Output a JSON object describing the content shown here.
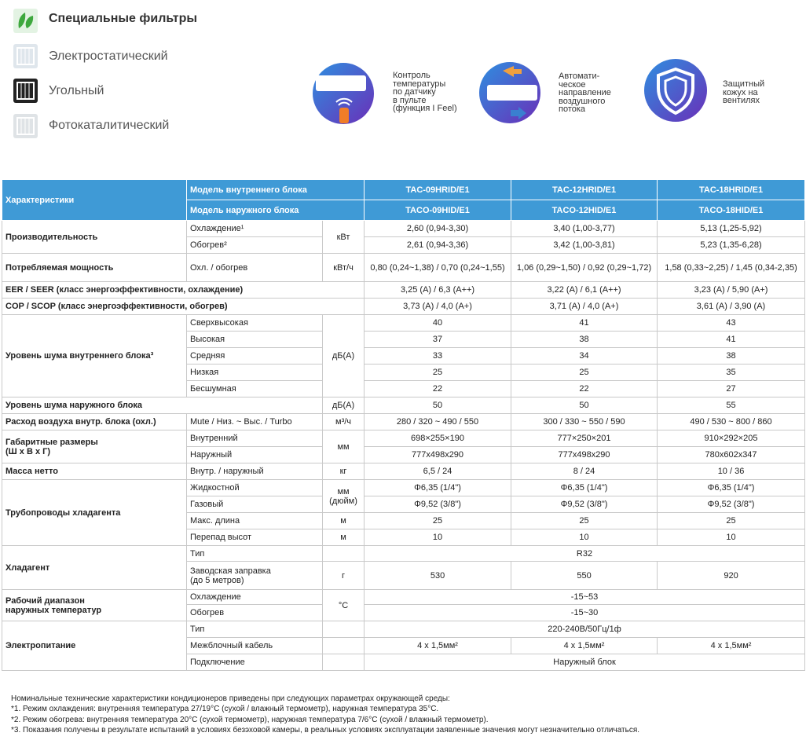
{
  "filters": {
    "title": "Специальные фильтры",
    "items": [
      "Электростатический",
      "Угольный",
      "Фотокаталитический"
    ]
  },
  "features": [
    {
      "lines": [
        "Контроль",
        "температуры",
        "по датчику",
        "в пульте",
        "(функция I Feel)"
      ]
    },
    {
      "lines": [
        "Автомати-",
        "ческое",
        "направление",
        "воздушного",
        "потока"
      ]
    },
    {
      "lines": [
        "Защитный",
        "кожух на",
        "вентилях"
      ]
    }
  ],
  "table": {
    "header": [
      [
        "Характеристики",
        "Модель внутреннего блока",
        "TAC-09HRID/E1",
        "TAC-12HRID/E1",
        "TAC-18HRID/E1"
      ],
      [
        "Модель наружного блока",
        "TACO-09HID/E1",
        "TACO-12HID/E1",
        "TACO-18HID/E1"
      ]
    ],
    "rows": [
      [
        "Производительность",
        "Охлаждение¹",
        "кВт",
        "2,60 (0,94-3,30)",
        "3,40 (1,00-3,77)",
        "5,13 (1,25-5,92)"
      ],
      [
        "Обогрев²",
        "2,61 (0,94-3,36)",
        "3,42 (1,00-3,81)",
        "5,23 (1,35-6,28)"
      ],
      [
        "Потребляемая мощность",
        "Охл. / обогрев",
        "кВт/ч",
        "0,80 (0,24~1,38) / 0,70 (0,24~1,55)",
        "1,06 (0,29~1,50) / 0,92 (0,29~1,72)",
        "1,58 (0,33~2,25) / 1,45 (0,34-2,35)"
      ],
      [
        "EER / SEER (класс энергоэффективности, охлаждение)",
        "3,25 (A) / 6,3 (A++)",
        "3,22 (A) / 6,1 (A++)",
        "3,23 (A) / 5,90 (A+)"
      ],
      [
        "COP / SCOP (класс энергоэффективности, обогрев)",
        "3,73 (A) / 4,0 (A+)",
        "3,71 (A) / 4,0 (A+)",
        "3,61 (A) / 3,90 (A)"
      ],
      [
        "Уровень шума внутреннего блока³",
        "Сверхвысокая",
        "дБ(А)",
        "40",
        "41",
        "43"
      ],
      [
        "Высокая",
        "37",
        "38",
        "41"
      ],
      [
        "Средняя",
        "33",
        "34",
        "38"
      ],
      [
        "Низкая",
        "25",
        "25",
        "35"
      ],
      [
        "Бесшумная",
        "22",
        "22",
        "27"
      ],
      [
        "Уровень шума наружного блока",
        "дБ(А)",
        "50",
        "50",
        "55"
      ],
      [
        "Расход воздуха внутр. блока (охл.)",
        "Mute / Низ. ~ Выс. / Turbo",
        "м³/ч",
        "280 / 320 ~ 490 / 550",
        "300 / 330 ~ 550 / 590",
        "490 / 530 ~ 800 / 860"
      ],
      [
        "Габаритные размеры\n(Ш x В x Г)",
        "Внутренний",
        "мм",
        "698×255×190",
        "777×250×201",
        "910×292×205"
      ],
      [
        "Наружный",
        "777x498x290",
        "777x498x290",
        "780x602x347"
      ],
      [
        "Масса нетто",
        "Внутр. / наружный",
        "кг",
        "6,5 / 24",
        "8 / 24",
        "10 / 36"
      ],
      [
        "Трубопроводы хладагента",
        "Жидкостной",
        "мм\n(дюйм)",
        "Φ6,35 (1/4\")",
        "Φ6,35 (1/4\")",
        "Φ6,35 (1/4\")"
      ],
      [
        "Газовый",
        "Φ9,52 (3/8\")",
        "Φ9,52 (3/8\")",
        "Φ9,52 (3/8\")"
      ],
      [
        "Макс. длина",
        "м",
        "25",
        "25",
        "25"
      ],
      [
        "Перепад высот",
        "м",
        "10",
        "10",
        "10"
      ],
      [
        "Хладагент",
        "Тип",
        "R32"
      ],
      [
        "Заводская заправка\n(до 5 метров)",
        "г",
        "530",
        "550",
        "920"
      ],
      [
        "Рабочий диапазон\nнаружных температур",
        "Охлаждение",
        "°C",
        "-15~53"
      ],
      [
        "Обогрев",
        "-15~30"
      ],
      [
        "Электропитание",
        "Тип",
        "220-240В/50Гц/1ф"
      ],
      [
        "Межблочный кабель",
        "4 x 1,5мм²",
        "4 x 1,5мм²",
        "4 x 1,5мм²"
      ],
      [
        "Подключение",
        "Наружный блок"
      ]
    ]
  },
  "notes": [
    "Номинальные технические характеристики кондиционеров приведены при следующих параметрах окружающей среды:",
    "*1. Режим охлаждения: внутренняя температура 27/19°C (сухой / влажный термометр), наружная температура 35°C.",
    "*2. Режим обогрева: внутренняя температура 20°C (сухой термометр), наружная температура 7/6°C (сухой / влажный термометр).",
    "*3. Показания получены в результате испытаний в условиях безэховой камеры, в реальных условиях эксплуатации заявленные значения могут незначительно отличаться."
  ]
}
